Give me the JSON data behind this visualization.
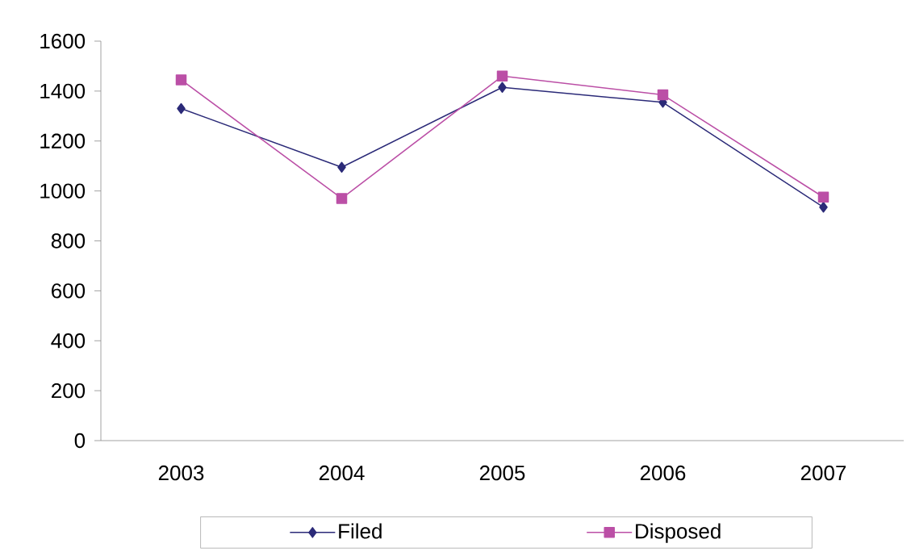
{
  "chart_data": {
    "type": "line",
    "categories": [
      "2003",
      "2004",
      "2005",
      "2006",
      "2007"
    ],
    "series": [
      {
        "name": "Filed",
        "color": "#2b2a78",
        "marker": "diamond",
        "values": [
          1330,
          1095,
          1415,
          1355,
          935
        ]
      },
      {
        "name": "Disposed",
        "color": "#bb4fa6",
        "marker": "square",
        "values": [
          1445,
          970,
          1460,
          1385,
          975
        ]
      }
    ],
    "ylim": [
      0,
      1600
    ],
    "yticks": [
      0,
      200,
      400,
      600,
      800,
      1000,
      1200,
      1400,
      1600
    ],
    "grid": false,
    "legend": "bottom",
    "line_style": "solid"
  }
}
